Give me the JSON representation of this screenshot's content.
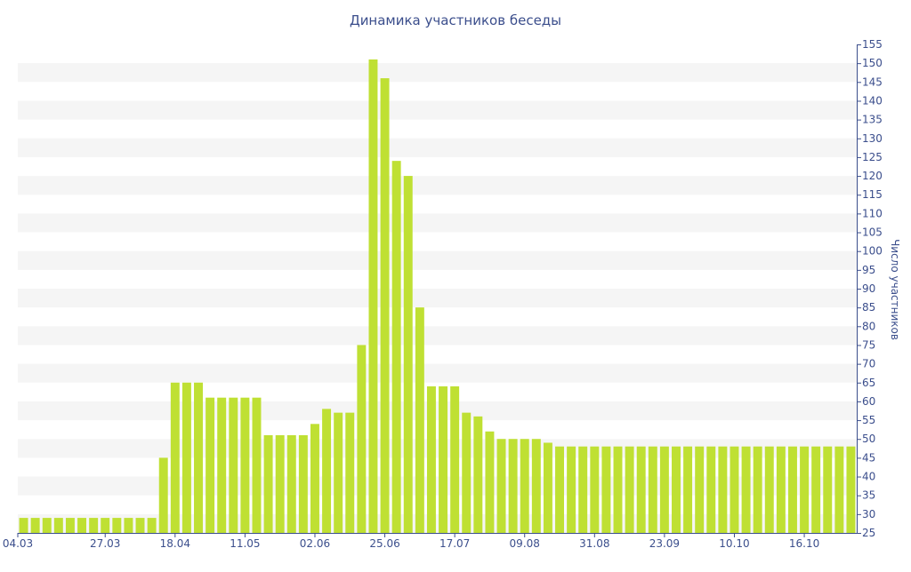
{
  "colors": {
    "bar": "#bfe033",
    "stripe": "#f5f5f5",
    "axis": "#3b4e8c",
    "text": "#3b4e8c",
    "background": "#ffffff"
  },
  "chart_data": {
    "type": "bar",
    "title": "Динамика участников беседы",
    "xlabel": "",
    "ylabel": "Число участников",
    "y_axis_position": "right",
    "ylim": [
      25,
      155
    ],
    "y_ticks": [
      25,
      30,
      35,
      40,
      45,
      50,
      55,
      60,
      65,
      70,
      75,
      80,
      85,
      90,
      95,
      100,
      105,
      110,
      115,
      120,
      125,
      130,
      135,
      140,
      145,
      150,
      155
    ],
    "x_tick_labels": [
      {
        "index": 0,
        "label": "04.03"
      },
      {
        "index": 7,
        "label": "27.03"
      },
      {
        "index": 13,
        "label": "18.04"
      },
      {
        "index": 19,
        "label": "11.05"
      },
      {
        "index": 25,
        "label": "02.06"
      },
      {
        "index": 31,
        "label": "25.06"
      },
      {
        "index": 37,
        "label": "17.07"
      },
      {
        "index": 43,
        "label": "09.08"
      },
      {
        "index": 49,
        "label": "31.08"
      },
      {
        "index": 55,
        "label": "23.09"
      },
      {
        "index": 61,
        "label": "10.10"
      },
      {
        "index": 67,
        "label": "16.10"
      }
    ],
    "grid": "horizontal alternating bands",
    "legend": "none",
    "values": [
      29,
      29,
      29,
      29,
      29,
      29,
      29,
      29,
      29,
      29,
      29,
      29,
      45,
      65,
      65,
      65,
      61,
      61,
      61,
      61,
      61,
      51,
      51,
      51,
      51,
      54,
      58,
      57,
      57,
      75,
      151,
      146,
      124,
      120,
      85,
      64,
      64,
      64,
      57,
      56,
      52,
      50,
      50,
      50,
      50,
      49,
      48,
      48,
      48,
      48,
      48,
      48,
      48,
      48,
      48,
      48,
      48,
      48,
      48,
      48,
      48,
      48,
      48,
      48,
      48,
      48,
      48,
      48,
      48,
      48,
      48,
      48
    ]
  }
}
